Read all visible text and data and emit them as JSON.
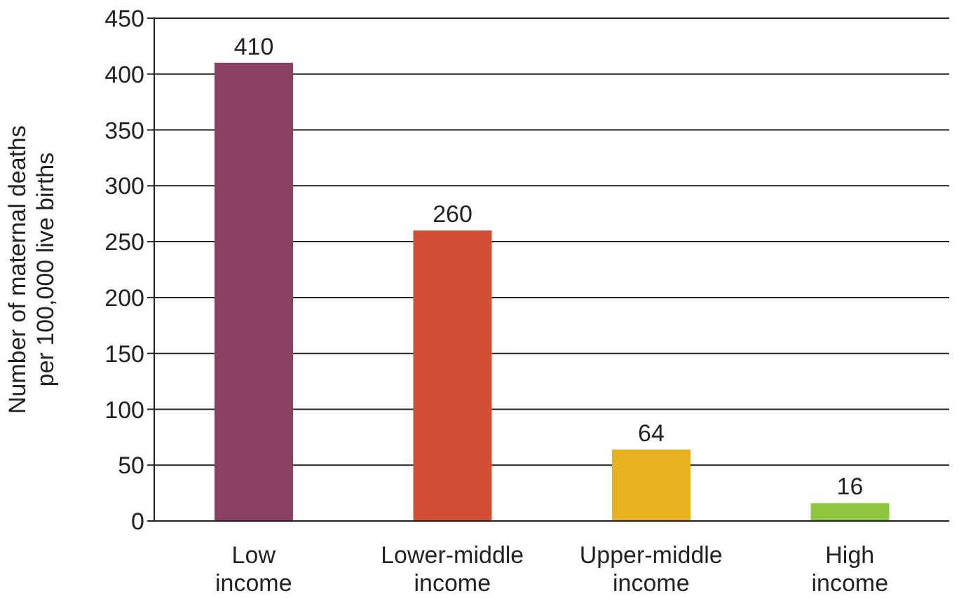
{
  "chart_data": {
    "type": "bar",
    "ylabel": "Number of maternal deaths\nper 100,000 live births",
    "categories": [
      "Low income",
      "Lower-middle income",
      "Upper-middle income",
      "High income"
    ],
    "values": [
      410,
      260,
      64,
      16
    ],
    "colors": [
      "#8b3f63",
      "#d44e37",
      "#e8b21f",
      "#8dc63f"
    ],
    "ylim": [
      0,
      450
    ],
    "yticks": [
      0,
      50,
      100,
      150,
      200,
      250,
      300,
      350,
      400,
      450
    ],
    "grid": "y",
    "data_labels": true
  }
}
